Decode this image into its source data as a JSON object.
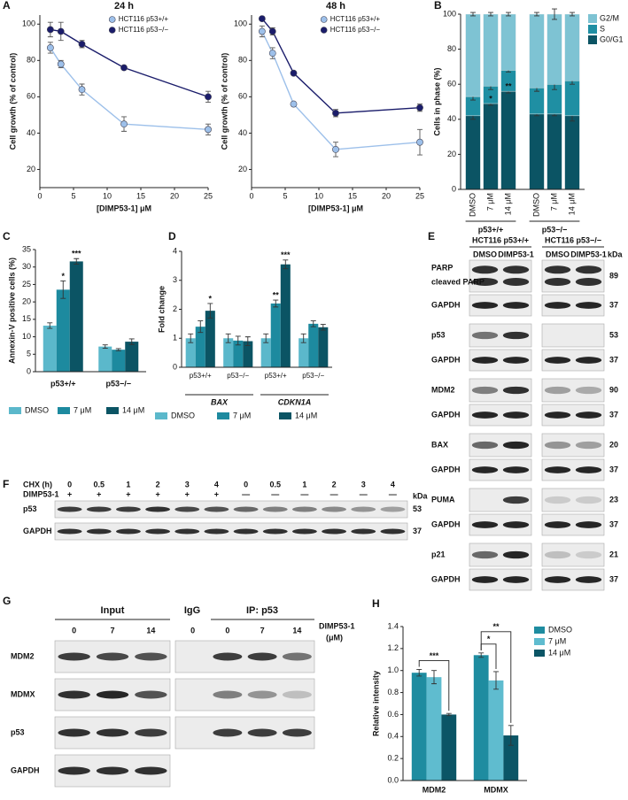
{
  "panel_labels": [
    "A",
    "B",
    "C",
    "D",
    "E",
    "F",
    "G",
    "H"
  ],
  "chart_data": [
    {
      "type": "line",
      "title": "24 h",
      "x": [
        1.5625,
        3.125,
        6.25,
        12.5,
        25
      ],
      "xlim": [
        0,
        25
      ],
      "xticks": [
        0,
        5,
        10,
        15,
        20,
        25
      ],
      "ylim": [
        10,
        105
      ],
      "yticks": [
        20,
        40,
        60,
        80,
        100
      ],
      "x_label": "[DIMP53-1] μM",
      "y_label": "Cell growth (% of control)",
      "series": [
        {
          "name": "HCT116 p53+/+",
          "color": "#9dc0ea",
          "values": [
            87,
            78,
            64,
            45,
            42
          ],
          "errors": [
            3,
            2,
            3,
            4,
            3
          ]
        },
        {
          "name": "HCT116 p53−/−",
          "color": "#1b1d6b",
          "values": [
            97,
            96,
            89,
            76,
            60
          ],
          "errors": [
            4,
            5,
            2,
            1,
            3
          ]
        }
      ]
    },
    {
      "type": "line",
      "title": "48 h",
      "x": [
        1.5625,
        3.125,
        6.25,
        12.5,
        25
      ],
      "xlim": [
        0,
        25
      ],
      "xticks": [
        0,
        5,
        10,
        15,
        20,
        25
      ],
      "ylim": [
        10,
        105
      ],
      "yticks": [
        20,
        40,
        60,
        80,
        100
      ],
      "x_label": "[DIMP53-1] μM",
      "y_label": "Cell growth (% of control)",
      "series": [
        {
          "name": "HCT116 p53+/+",
          "color": "#9dc0ea",
          "values": [
            96,
            84,
            56,
            31,
            35
          ],
          "errors": [
            3,
            3,
            1,
            4,
            7
          ]
        },
        {
          "name": "HCT116 p53−/−",
          "color": "#1b1d6b",
          "values": [
            103,
            96,
            73,
            51,
            54
          ],
          "errors": [
            1,
            2,
            1,
            2,
            2
          ]
        }
      ]
    },
    {
      "type": "stacked_bar",
      "categories": [
        "DMSO",
        "7 μM",
        "14 μM",
        "DMSO",
        "7 μM",
        "14 μM"
      ],
      "groups": [
        "p53+/+",
        "p53−/−"
      ],
      "ylim": [
        0,
        100
      ],
      "yticks": [
        0,
        20,
        40,
        60,
        80,
        100
      ],
      "y_label": "Cells in phase (%)",
      "legend": "right",
      "series": [
        {
          "name": "G0/G1",
          "color": "#0b5464",
          "values": [
            42,
            49,
            56,
            43,
            43,
            42
          ],
          "errors": [
            2,
            1,
            1,
            1,
            1,
            3
          ]
        },
        {
          "name": "S",
          "color": "#1f8fa3",
          "values": [
            11,
            10,
            12,
            15,
            17,
            20
          ],
          "errors": [
            2,
            2,
            1,
            2,
            3,
            2
          ]
        },
        {
          "name": "G2/M",
          "color": "#7ec3d3",
          "values": [
            47,
            41,
            32,
            42,
            40,
            38
          ],
          "errors": [
            1,
            1,
            1,
            1,
            3,
            1
          ]
        }
      ],
      "annotations": [
        "*",
        "**"
      ]
    },
    {
      "type": "grouped_bar",
      "categories": [
        "p53+/+",
        "p53−/−"
      ],
      "ylim": [
        0,
        35
      ],
      "yticks": [
        0,
        5,
        10,
        15,
        20,
        25,
        30,
        35
      ],
      "y_label": "Annexin-V positive cells (%)",
      "legend": "bottom",
      "series": [
        {
          "name": "DMSO",
          "color": "#5bb8cb",
          "values": [
            13.2,
            7.2
          ],
          "errors": [
            0.8,
            0.5
          ]
        },
        {
          "name": "7 μM",
          "color": "#1d8a9f",
          "values": [
            23.5,
            6.3
          ],
          "errors": [
            2.5,
            0.3
          ]
        },
        {
          "name": "14 μM",
          "color": "#0b5464",
          "values": [
            31.6,
            8.6
          ],
          "errors": [
            0.8,
            0.8
          ]
        }
      ],
      "annotations": [
        "*",
        "***"
      ]
    },
    {
      "type": "grouped_bar",
      "categories": [
        "p53+/+",
        "p53−/−",
        "p53+/+",
        "p53−/−"
      ],
      "groups": [
        "BAX",
        "CDKN1A"
      ],
      "ylim": [
        0,
        4
      ],
      "yticks": [
        0,
        1,
        2,
        3,
        4
      ],
      "y_label": "Fold change",
      "legend": "bottom",
      "series": [
        {
          "name": "DMSO",
          "color": "#5bb8cb",
          "values": [
            1,
            1,
            1,
            1
          ],
          "errors": [
            0.15,
            0.15,
            0.15,
            0.15
          ]
        },
        {
          "name": "7 μM",
          "color": "#1d8a9f",
          "values": [
            1.4,
            0.92,
            2.2,
            1.5
          ],
          "errors": [
            0.2,
            0.15,
            0.12,
            0.1
          ]
        },
        {
          "name": "14 μM",
          "color": "#0b5464",
          "values": [
            1.95,
            0.9,
            3.55,
            1.38
          ],
          "errors": [
            0.25,
            0.15,
            0.15,
            0.1
          ]
        }
      ],
      "annotations": [
        "*",
        "**",
        "***"
      ]
    },
    {
      "type": "grouped_bar",
      "categories": [
        "MDM2",
        "MDMX"
      ],
      "ylim": [
        0,
        1.4
      ],
      "yticks": [
        {
          "value": 0,
          "label": "0.0"
        },
        0.2,
        0.4,
        0.6,
        0.8,
        {
          "value": 1,
          "label": "1.0"
        },
        1.2,
        1.4
      ],
      "y_label": "Relative intensity",
      "legend": "right",
      "series": [
        {
          "name": "DMSO",
          "color": "#1e8ca0",
          "values": [
            0.98,
            1.14
          ],
          "errors": [
            0.03,
            0.02
          ]
        },
        {
          "name": "7 μM",
          "color": "#5fbccf",
          "values": [
            0.94,
            0.91
          ],
          "errors": [
            0.06,
            0.08
          ]
        },
        {
          "name": "14 μM",
          "color": "#0b5566",
          "values": [
            0.6,
            0.41
          ],
          "errors": [
            0.01,
            0.09
          ]
        }
      ],
      "annotations": [
        "***",
        "*",
        "**"
      ]
    }
  ],
  "blots": {
    "E": {
      "groups": [
        "HCT116 p53+/+",
        "HCT116 p53−/−"
      ],
      "lanes": [
        "DMSO",
        "DIMP53-1",
        "DMSO",
        "DIMP53-1"
      ],
      "unit": "kDa",
      "rows": [
        {
          "labels": [
            "PARP",
            "cleaved PARP"
          ],
          "kDa": 89
        },
        {
          "labels": [
            "GAPDH"
          ],
          "kDa": 37
        },
        {
          "labels": [
            "p53"
          ],
          "kDa": 53
        },
        {
          "labels": [
            "GAPDH"
          ],
          "kDa": 37
        },
        {
          "labels": [
            "MDM2"
          ],
          "kDa": 90
        },
        {
          "labels": [
            "GAPDH"
          ],
          "kDa": 37
        },
        {
          "labels": [
            "BAX"
          ],
          "kDa": 20
        },
        {
          "labels": [
            "GAPDH"
          ],
          "kDa": 37
        },
        {
          "labels": [
            "PUMA"
          ],
          "kDa": 23
        },
        {
          "labels": [
            "GAPDH"
          ],
          "kDa": 37
        },
        {
          "labels": [
            "p21"
          ],
          "kDa": 21
        },
        {
          "labels": [
            "GAPDH"
          ],
          "kDa": 37
        }
      ]
    },
    "F": {
      "chx_label": "CHX (h)",
      "chx": [
        "0",
        "0.5",
        "1",
        "2",
        "3",
        "4",
        "0",
        "0.5",
        "1",
        "2",
        "3",
        "4"
      ],
      "treatment_label": "DIMP53-1",
      "treatment": [
        "+",
        "+",
        "+",
        "+",
        "+",
        "+",
        "—",
        "—",
        "—",
        "—",
        "—",
        "—"
      ],
      "unit": "kDa",
      "rows": [
        {
          "label": "p53",
          "kDa": 53
        },
        {
          "label": "GAPDH",
          "kDa": 37
        }
      ]
    },
    "G": {
      "headers": [
        "Input",
        "IgG",
        "IP: p53"
      ],
      "input_lanes": [
        "0",
        "7",
        "14"
      ],
      "ip_lanes": [
        "0",
        "0",
        "7",
        "14"
      ],
      "treatment": "DIMP53-1",
      "unit": "(μM)",
      "rows": [
        "MDM2",
        "MDMX",
        "p53",
        "GAPDH"
      ]
    }
  }
}
